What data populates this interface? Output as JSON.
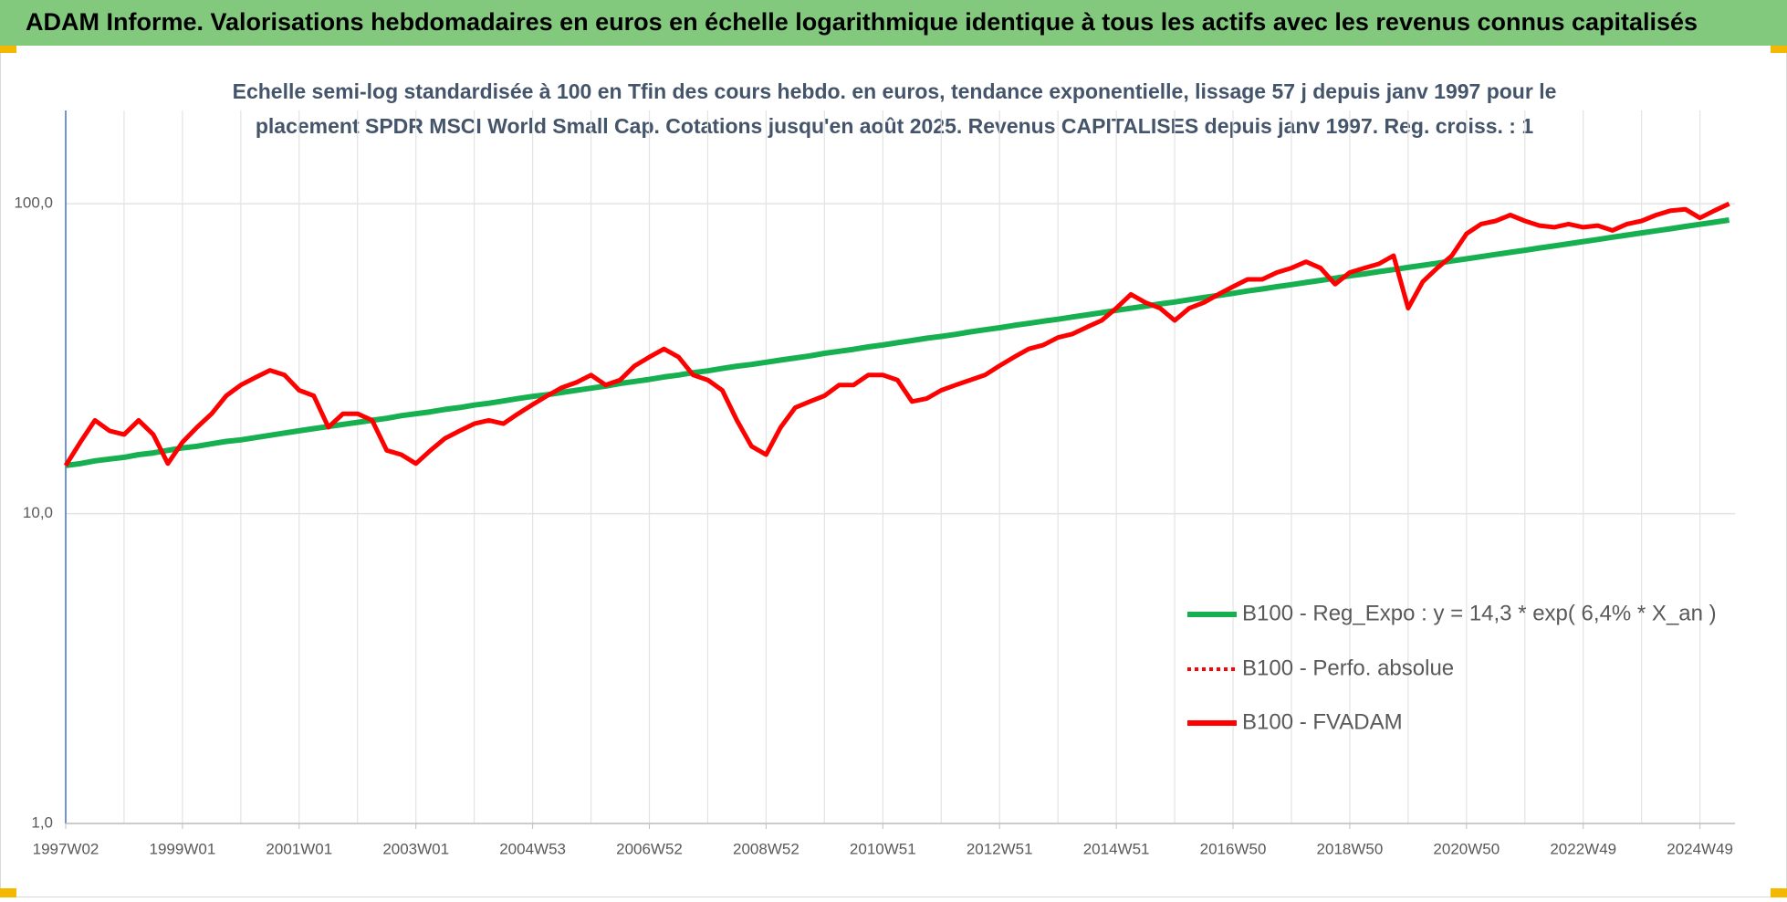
{
  "chart_data": {
    "type": "line",
    "title": "ADAM Informe. Valorisations hebdomadaires en euros en échelle logarithmique identique à tous les actifs avec les revenus connus capitalisés",
    "subtitle": [
      "Echelle semi-log standardisée à 100 en Tfin des cours hebdo. en euros, tendance exponentielle, lissage 57 j depuis janv 1997 pour le",
      "placement SPDR MSCI World Small Cap. Cotations jusqu'en août 2025. Revenus CAPITALISES depuis janv 1997. Reg. croiss. : 1"
    ],
    "log_y": true,
    "grid": true,
    "legend_position": "right",
    "ylim": [
      1,
      200
    ],
    "yticks": [
      {
        "value": 1,
        "label": "1,0"
      },
      {
        "value": 10,
        "label": "10,0"
      },
      {
        "value": 100,
        "label": "100,0"
      }
    ],
    "categories": [
      "1997W02",
      null,
      null,
      null,
      null,
      null,
      null,
      null,
      "1999W01",
      null,
      null,
      null,
      null,
      null,
      null,
      null,
      "2001W01",
      null,
      null,
      null,
      null,
      null,
      null,
      null,
      "2003W01",
      null,
      null,
      null,
      null,
      null,
      null,
      null,
      "2004W53",
      null,
      null,
      null,
      null,
      null,
      null,
      null,
      "2006W52",
      null,
      null,
      null,
      null,
      null,
      null,
      null,
      "2008W52",
      null,
      null,
      null,
      null,
      null,
      null,
      null,
      "2010W51",
      null,
      null,
      null,
      null,
      null,
      null,
      null,
      "2012W51",
      null,
      null,
      null,
      null,
      null,
      null,
      null,
      "2014W51",
      null,
      null,
      null,
      null,
      null,
      null,
      null,
      "2016W50",
      null,
      null,
      null,
      null,
      null,
      null,
      null,
      "2018W50",
      null,
      null,
      null,
      null,
      null,
      null,
      null,
      "2020W50",
      null,
      null,
      null,
      null,
      null,
      null,
      null,
      "2022W49",
      null,
      null,
      null,
      null,
      null,
      null,
      null,
      "2024W49",
      null,
      null
    ],
    "series": [
      {
        "name": "B100 - Reg_Expo : y = 14,3 * exp( 6,4% *  X_an )",
        "color": "#16b050",
        "style": "solid",
        "values": [
          14.3,
          14.5,
          14.8,
          15.0,
          15.2,
          15.5,
          15.7,
          16.0,
          16.3,
          16.5,
          16.8,
          17.1,
          17.3,
          17.6,
          17.9,
          18.2,
          18.5,
          18.8,
          19.1,
          19.4,
          19.7,
          20.0,
          20.3,
          20.7,
          21.0,
          21.3,
          21.7,
          22.0,
          22.4,
          22.7,
          23.1,
          23.5,
          23.9,
          24.2,
          24.6,
          25.0,
          25.4,
          25.8,
          26.3,
          26.7,
          27.1,
          27.6,
          28.0,
          28.5,
          28.9,
          29.4,
          29.9,
          30.3,
          30.8,
          31.3,
          31.8,
          32.3,
          32.9,
          33.4,
          33.9,
          34.5,
          35.0,
          35.6,
          36.2,
          36.8,
          37.3,
          37.9,
          38.6,
          39.2,
          39.8,
          40.5,
          41.1,
          41.8,
          42.4,
          43.1,
          43.8,
          44.5,
          45.3,
          46.0,
          46.7,
          47.5,
          48.2,
          49.0,
          49.8,
          50.6,
          51.4,
          52.3,
          53.1,
          54.0,
          54.8,
          55.7,
          56.6,
          57.5,
          58.5,
          59.4,
          60.4,
          61.3,
          62.3,
          63.3,
          64.3,
          65.4,
          66.4,
          67.5,
          68.6,
          69.7,
          70.8,
          72.0,
          73.1,
          74.3,
          75.5,
          76.7,
          78.0,
          79.2,
          80.5,
          81.8,
          83.1,
          84.5,
          85.8,
          87.2,
          88.6
        ]
      },
      {
        "name": "B100 - Perfo. absolue",
        "color": "#ff0000",
        "style": "dotted",
        "values": [
          14.3,
          17,
          20,
          18.5,
          18,
          20,
          18,
          14.5,
          17,
          19,
          21,
          24,
          26,
          27.5,
          29,
          28,
          25,
          24,
          19,
          21,
          21,
          20,
          16,
          15.5,
          14.5,
          16,
          17.5,
          18.5,
          19.5,
          20,
          19.5,
          21,
          22.5,
          24,
          25.5,
          26.5,
          28,
          26,
          27,
          30,
          32,
          34,
          32,
          28,
          27,
          25,
          20,
          16.5,
          15.5,
          19,
          22,
          23,
          24,
          26,
          26,
          28,
          28,
          27,
          23,
          23.5,
          25,
          26,
          27,
          28,
          30,
          32,
          34,
          35,
          37,
          38,
          40,
          42,
          46,
          51,
          48,
          46,
          42,
          46,
          48,
          51,
          54,
          57,
          57,
          60,
          62,
          65,
          62,
          55,
          60,
          62,
          64,
          68,
          46,
          56,
          62,
          68,
          80,
          86,
          88,
          92,
          88,
          85,
          84,
          86,
          84,
          85,
          82,
          86,
          88,
          92,
          95,
          96,
          90,
          95,
          100
        ]
      },
      {
        "name": "B100 - FVADAM",
        "color": "#ff0000",
        "style": "solid",
        "values": [
          14.3,
          17,
          20,
          18.5,
          18,
          20,
          18,
          14.5,
          17,
          19,
          21,
          24,
          26,
          27.5,
          29,
          28,
          25,
          24,
          19,
          21,
          21,
          20,
          16,
          15.5,
          14.5,
          16,
          17.5,
          18.5,
          19.5,
          20,
          19.5,
          21,
          22.5,
          24,
          25.5,
          26.5,
          28,
          26,
          27,
          30,
          32,
          34,
          32,
          28,
          27,
          25,
          20,
          16.5,
          15.5,
          19,
          22,
          23,
          24,
          26,
          26,
          28,
          28,
          27,
          23,
          23.5,
          25,
          26,
          27,
          28,
          30,
          32,
          34,
          35,
          37,
          38,
          40,
          42,
          46,
          51,
          48,
          46,
          42,
          46,
          48,
          51,
          54,
          57,
          57,
          60,
          62,
          65,
          62,
          55,
          60,
          62,
          64,
          68,
          46,
          56,
          62,
          68,
          80,
          86,
          88,
          92,
          88,
          85,
          84,
          86,
          84,
          85,
          82,
          86,
          88,
          92,
          95,
          96,
          90,
          95,
          100
        ]
      }
    ]
  }
}
